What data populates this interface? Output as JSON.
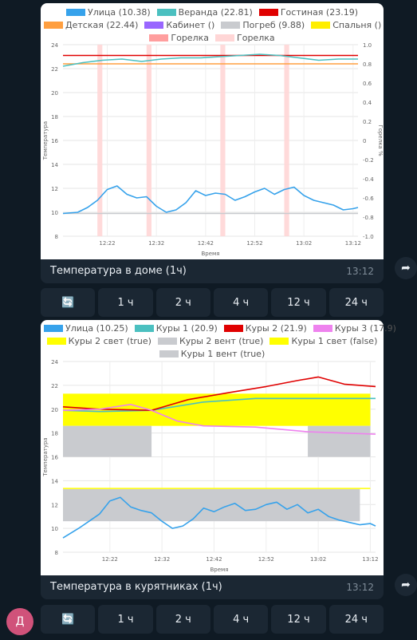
{
  "chat": {
    "avatar_letter": "Д",
    "messages": [
      {
        "caption": "Температура в доме (1ч)",
        "time": "13:12"
      },
      {
        "caption": "Температура в курятниках (1ч)",
        "time": "13:12"
      }
    ],
    "keyboard": [
      {
        "icon": "refresh-icon",
        "label": "🔄"
      },
      {
        "label": "1 ч"
      },
      {
        "label": "2 ч"
      },
      {
        "label": "4 ч"
      },
      {
        "label": "12 ч"
      },
      {
        "label": "24 ч"
      }
    ]
  },
  "chart_data": [
    {
      "type": "line",
      "ylabel": "Температура",
      "y2label": "Горелка %",
      "xlabel": "Время",
      "ylim": [
        8,
        24
      ],
      "y2lim": [
        -1.0,
        1.0
      ],
      "yticks": [
        "8",
        "10",
        "12",
        "14",
        "16",
        "18",
        "20",
        "22",
        "24"
      ],
      "y2ticks": [
        "-1.0",
        "-0.8",
        "-0.6",
        "-0.4",
        "-0.2",
        "0",
        "0.2",
        "0.4",
        "0.6",
        "0.8",
        "1.0"
      ],
      "xticks": [
        "12:22",
        "12:32",
        "12:42",
        "12:52",
        "13:02",
        "13:12"
      ],
      "xlim": [
        "12:13",
        "13:13"
      ],
      "legend_position": "top",
      "legend": [
        {
          "name": "Улица (10.38)",
          "color": "#36a2eb"
        },
        {
          "name": "Веранда (22.81)",
          "color": "#4bc0c0"
        },
        {
          "name": "Гостиная (23.19)",
          "color": "#e00000"
        },
        {
          "name": "Детская (22.44)",
          "color": "#ff9f40"
        },
        {
          "name": "Кабинет ()",
          "color": "#9966ff"
        },
        {
          "name": "Погреб (9.88)",
          "color": "#c9cbcf"
        },
        {
          "name": "Спальня ()",
          "color": "#ffee00"
        },
        {
          "name": "Горелка",
          "color": "#ff9e9e"
        },
        {
          "name": "Горелка",
          "color": "#ffd6d6"
        }
      ],
      "burner_bands": [
        [
          "12:20",
          "12:21"
        ],
        [
          "12:30",
          "12:31"
        ],
        [
          "12:45",
          "12:46"
        ],
        [
          "12:58",
          "12:59"
        ]
      ],
      "series": [
        {
          "name": "Гостиная (23.19)",
          "color": "#e00000",
          "x": [
            "12:13",
            "13:13"
          ],
          "values": [
            23.1,
            23.1
          ]
        },
        {
          "name": "Детская (22.44)",
          "color": "#ff9f40",
          "x": [
            "12:13",
            "13:13"
          ],
          "values": [
            22.4,
            22.4
          ]
        },
        {
          "name": "Веранда (22.81)",
          "color": "#4bc0c0",
          "x": [
            "12:13",
            "12:17",
            "12:21",
            "12:25",
            "12:29",
            "12:33",
            "12:37",
            "12:41",
            "12:45",
            "12:49",
            "12:53",
            "12:57",
            "13:01",
            "13:05",
            "13:09",
            "13:13"
          ],
          "values": [
            22.2,
            22.5,
            22.7,
            22.8,
            22.6,
            22.8,
            22.9,
            22.9,
            23.0,
            23.1,
            23.2,
            23.1,
            22.9,
            22.7,
            22.8,
            22.8
          ]
        },
        {
          "name": "Погреб (9.88)",
          "color": "#c9cbcf",
          "x": [
            "12:13",
            "13:13"
          ],
          "values": [
            9.9,
            9.9
          ]
        },
        {
          "name": "Улица (10.38)",
          "color": "#36a2eb",
          "x": [
            "12:13",
            "12:16",
            "12:18",
            "12:20",
            "12:22",
            "12:24",
            "12:26",
            "12:28",
            "12:30",
            "12:32",
            "12:34",
            "12:36",
            "12:38",
            "12:40",
            "12:42",
            "12:44",
            "12:46",
            "12:48",
            "12:50",
            "12:52",
            "12:54",
            "12:56",
            "12:58",
            "13:00",
            "13:02",
            "13:04",
            "13:06",
            "13:08",
            "13:10",
            "13:12",
            "13:13"
          ],
          "values": [
            9.9,
            10.0,
            10.4,
            11.0,
            11.9,
            12.2,
            11.5,
            11.2,
            11.3,
            10.5,
            10.0,
            10.2,
            10.8,
            11.8,
            11.4,
            11.6,
            11.5,
            11.0,
            11.3,
            11.7,
            12.0,
            11.5,
            11.9,
            12.1,
            11.4,
            11.0,
            10.8,
            10.6,
            10.2,
            10.3,
            10.4
          ]
        }
      ]
    },
    {
      "type": "line",
      "ylabel": "Температура",
      "xlabel": "Время",
      "ylim": [
        8,
        24
      ],
      "yticks": [
        "8",
        "10",
        "12",
        "14",
        "16",
        "18",
        "20",
        "22",
        "24"
      ],
      "xticks": [
        "12:22",
        "12:32",
        "12:42",
        "12:52",
        "13:02",
        "13:12"
      ],
      "xlim": [
        "12:13",
        "13:13"
      ],
      "legend_position": "top",
      "legend": [
        {
          "name": "Улица (10.25)",
          "color": "#36a2eb"
        },
        {
          "name": "Куры 1 (20.9)",
          "color": "#4bc0c0"
        },
        {
          "name": "Куры 2 (21.9)",
          "color": "#e00000"
        },
        {
          "name": "Куры 3 (17.9)",
          "color": "#ee82ee"
        },
        {
          "name": "Куры 2 свет (true)",
          "color": "#ffff00"
        },
        {
          "name": "Куры 2 вент (true)",
          "color": "#c9cbcf"
        },
        {
          "name": "Куры 1 свет (false)",
          "color": "#ffff00"
        },
        {
          "name": "Куры 1 вент (true)",
          "color": "#c9cbcf"
        }
      ],
      "bands": [
        {
          "name": "Куры 2 свет (true)",
          "color": "#ffff00",
          "x": [
            "12:13",
            "13:12"
          ],
          "y": [
            18.6,
            21.3
          ]
        },
        {
          "name": "Куры 2 вент (true)",
          "color": "#c9cbcf",
          "x": [
            "12:13",
            "12:30"
          ],
          "y": [
            16.0,
            18.6
          ]
        },
        {
          "name": "Куры 2 вент (true)",
          "color": "#c9cbcf",
          "x": [
            "13:00",
            "13:12"
          ],
          "y": [
            16.0,
            18.6
          ]
        },
        {
          "name": "Куры 1 вент (true)",
          "color": "#c9cbcf",
          "x": [
            "12:13",
            "13:10"
          ],
          "y": [
            10.6,
            13.3
          ]
        },
        {
          "name": "Куры 1 свет (false)",
          "color": "#ffff00",
          "x": [
            "12:13",
            "13:12"
          ],
          "y": [
            13.3,
            13.4
          ]
        }
      ],
      "series": [
        {
          "name": "Куры 1 (20.9)",
          "color": "#4bc0c0",
          "x": [
            "12:13",
            "12:20",
            "12:30",
            "12:40",
            "12:50",
            "13:00",
            "13:13"
          ],
          "values": [
            19.9,
            19.8,
            19.9,
            20.6,
            20.9,
            20.9,
            20.9
          ]
        },
        {
          "name": "Куры 2 (21.9)",
          "color": "#e00000",
          "x": [
            "12:13",
            "12:20",
            "12:30",
            "12:37",
            "12:45",
            "12:52",
            "12:58",
            "13:02",
            "13:07",
            "13:13"
          ],
          "values": [
            20.2,
            20.0,
            19.9,
            20.8,
            21.4,
            21.9,
            22.4,
            22.7,
            22.1,
            21.9
          ]
        },
        {
          "name": "Куры 3 (17.9)",
          "color": "#ee82ee",
          "x": [
            "12:13",
            "12:20",
            "12:26",
            "12:30",
            "12:35",
            "12:40",
            "12:50",
            "13:00",
            "13:13"
          ],
          "values": [
            19.9,
            20.0,
            20.4,
            19.9,
            19.0,
            18.6,
            18.5,
            18.1,
            17.9
          ]
        },
        {
          "name": "Улица (10.25)",
          "color": "#36a2eb",
          "x": [
            "12:13",
            "12:16",
            "12:18",
            "12:20",
            "12:22",
            "12:24",
            "12:26",
            "12:28",
            "12:30",
            "12:32",
            "12:34",
            "12:36",
            "12:38",
            "12:40",
            "12:42",
            "12:44",
            "12:46",
            "12:48",
            "12:50",
            "12:52",
            "12:54",
            "12:56",
            "12:58",
            "13:00",
            "13:02",
            "13:04",
            "13:06",
            "13:08",
            "13:10",
            "13:12",
            "13:13"
          ],
          "values": [
            9.2,
            10.0,
            10.6,
            11.2,
            12.3,
            12.6,
            11.8,
            11.5,
            11.3,
            10.6,
            10.0,
            10.2,
            10.8,
            11.7,
            11.4,
            11.8,
            12.1,
            11.5,
            11.6,
            12.0,
            12.2,
            11.6,
            12.0,
            11.3,
            11.6,
            11.0,
            10.7,
            10.5,
            10.3,
            10.4,
            10.2
          ]
        }
      ]
    }
  ]
}
